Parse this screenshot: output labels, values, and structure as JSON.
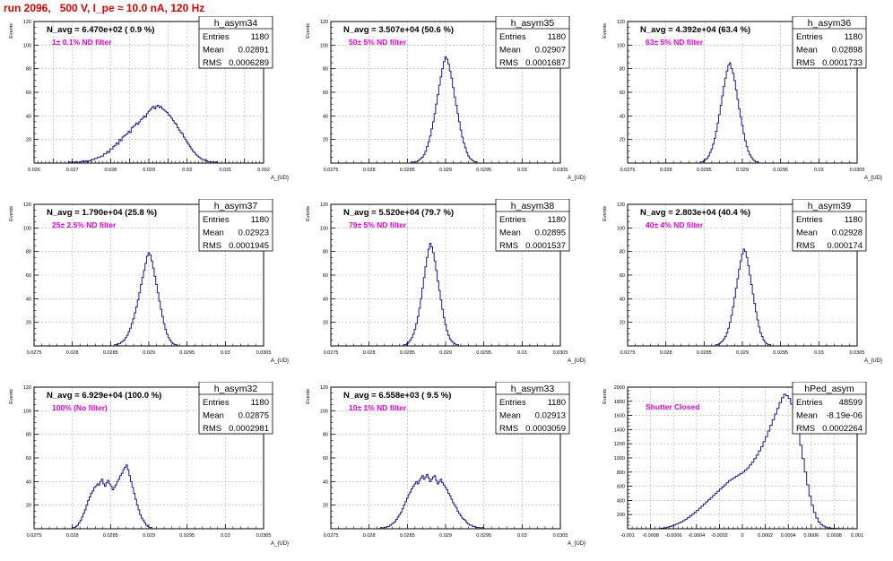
{
  "page": {
    "title": "run 2096,   500 V, I_pe ≈ 10.0 nA, 120 Hz"
  },
  "colors": {
    "histogram": "#1a1a8c",
    "annotation": "#e000e0",
    "title_text": "#d40000",
    "grid": "#b0b0b0"
  },
  "chart_data": [
    {
      "type": "bar",
      "name": "h_asym34",
      "stats": {
        "Entries": "1180",
        "Mean": "0.02891",
        "RMS": "0.0006289"
      },
      "navg": "N_avg = 6.470e+02 ( 0.9 %)",
      "filter_label": "1± 0.1% ND filter",
      "xlabel": "A_{UD}",
      "ylabel": "Events",
      "xlim": [
        0.026,
        0.032
      ],
      "ylim": [
        0,
        120
      ],
      "xticks": [
        0.026,
        0.0265,
        0.027,
        0.0275,
        0.028,
        0.0285,
        0.029,
        0.0295,
        0.03,
        0.0305,
        0.031,
        0.0315,
        0.032
      ],
      "xtick_labels": [
        "0.026",
        "",
        "0.027",
        "",
        "0.028",
        "",
        "0.029",
        "",
        "0.03",
        "",
        "0.031",
        "",
        "0.032"
      ],
      "yticks": [
        0,
        20,
        40,
        60,
        80,
        100,
        120
      ],
      "ytick_labels": [
        "",
        "20",
        "40",
        "60",
        "80",
        "100",
        "120"
      ],
      "hist": {
        "start": 0.0269,
        "width": 4e-05,
        "values": [
          1,
          0,
          1,
          0,
          1,
          1,
          0,
          1,
          1,
          2,
          1,
          2,
          1,
          2,
          2,
          3,
          3,
          4,
          4,
          5,
          5,
          6,
          6,
          8,
          8,
          10,
          9,
          12,
          12,
          14,
          15,
          17,
          16,
          20,
          19,
          22,
          23,
          24,
          25,
          27,
          26,
          30,
          31,
          32,
          34,
          33,
          35,
          37,
          38,
          40,
          39,
          42,
          44,
          45,
          47,
          48,
          46,
          48,
          49,
          47,
          48,
          46,
          45,
          44,
          43,
          41,
          40,
          38,
          36,
          34,
          33,
          30,
          28,
          26,
          25,
          22,
          20,
          18,
          16,
          14,
          12,
          10,
          9,
          7,
          6,
          5,
          4,
          3,
          3,
          2,
          2,
          1,
          1,
          1,
          1,
          0,
          1
        ]
      }
    },
    {
      "type": "bar",
      "name": "h_asym35",
      "stats": {
        "Entries": "1180",
        "Mean": "0.02907",
        "RMS": "0.0001687"
      },
      "navg": "N_avg = 3.507e+04 (50.6 %)",
      "filter_label": "50± 5% ND filter",
      "xlabel": "A_{UD}",
      "ylabel": "Events",
      "xlim": [
        0.0275,
        0.0305
      ],
      "ylim": [
        0,
        120
      ],
      "xticks": [
        0.0275,
        0.028,
        0.0285,
        0.029,
        0.0295,
        0.03,
        0.0305
      ],
      "xtick_labels": [
        "0.0275",
        "0.028",
        "0.0285",
        "0.029",
        "0.0295",
        "0.03",
        "0.0305"
      ],
      "yticks": [
        0,
        20,
        40,
        60,
        80,
        100,
        120
      ],
      "ytick_labels": [
        "",
        "20",
        "40",
        "60",
        "80",
        "100",
        "120"
      ],
      "hist": {
        "start": 0.02855,
        "width": 2e-05,
        "values": [
          1,
          0,
          1,
          1,
          2,
          3,
          4,
          5,
          7,
          10,
          14,
          18,
          23,
          29,
          35,
          42,
          50,
          58,
          66,
          73,
          80,
          86,
          90,
          88,
          84,
          78,
          72,
          64,
          56,
          49,
          42,
          35,
          28,
          22,
          17,
          13,
          9,
          6,
          4,
          3,
          2,
          1,
          1
        ]
      }
    },
    {
      "type": "bar",
      "name": "h_asym36",
      "stats": {
        "Entries": "1180",
        "Mean": "0.02898",
        "RMS": "0.0001733"
      },
      "navg": "N_avg = 4.392e+04 (63.4 %)",
      "filter_label": "63± 5% ND filter",
      "xlabel": "A_{UD}",
      "ylabel": "Events",
      "xlim": [
        0.0275,
        0.0305
      ],
      "ylim": [
        0,
        120
      ],
      "xticks": [
        0.0275,
        0.028,
        0.0285,
        0.029,
        0.0295,
        0.03,
        0.0305
      ],
      "xtick_labels": [
        "0.0275",
        "0.028",
        "0.0285",
        "0.029",
        "0.0295",
        "0.03",
        "0.0305"
      ],
      "yticks": [
        0,
        20,
        40,
        60,
        80,
        100,
        120
      ],
      "ytick_labels": [
        "",
        "20",
        "40",
        "60",
        "80",
        "100",
        "120"
      ],
      "hist": {
        "start": 0.02845,
        "width": 2e-05,
        "values": [
          1,
          1,
          2,
          3,
          4,
          6,
          9,
          12,
          16,
          21,
          27,
          34,
          41,
          49,
          57,
          65,
          72,
          78,
          83,
          85,
          80,
          76,
          70,
          62,
          54,
          46,
          39,
          32,
          25,
          19,
          14,
          10,
          7,
          5,
          3,
          2,
          1,
          1
        ]
      }
    },
    {
      "type": "bar",
      "name": "h_asym37",
      "stats": {
        "Entries": "1180",
        "Mean": "0.02923",
        "RMS": "0.0001945"
      },
      "navg": "N_avg = 1.790e+04 (25.8 %)",
      "filter_label": "25± 2.5% ND filter",
      "xlabel": "A_{UD}",
      "ylabel": "Events",
      "xlim": [
        0.0275,
        0.0305
      ],
      "ylim": [
        0,
        120
      ],
      "xticks": [
        0.0275,
        0.028,
        0.0285,
        0.029,
        0.0295,
        0.03,
        0.0305
      ],
      "xtick_labels": [
        "0.0275",
        "0.028",
        "0.0285",
        "0.029",
        "0.0295",
        "0.03",
        "0.0305"
      ],
      "yticks": [
        0,
        20,
        40,
        60,
        80,
        100,
        120
      ],
      "ytick_labels": [
        "",
        "20",
        "40",
        "60",
        "80",
        "100",
        "120"
      ],
      "hist": {
        "start": 0.02855,
        "width": 2e-05,
        "values": [
          1,
          1,
          2,
          2,
          3,
          4,
          5,
          7,
          9,
          12,
          15,
          19,
          23,
          28,
          33,
          39,
          45,
          52,
          58,
          64,
          70,
          76,
          79,
          77,
          72,
          66,
          59,
          52,
          45,
          38,
          31,
          25,
          19,
          14,
          10,
          7,
          5,
          3,
          2,
          1,
          1
        ]
      }
    },
    {
      "type": "bar",
      "name": "h_asym38",
      "stats": {
        "Entries": "1180",
        "Mean": "0.02895",
        "RMS": "0.0001537"
      },
      "navg": "N_avg = 5.520e+04 (79.7 %)",
      "filter_label": "79± 5% ND filter",
      "xlabel": "A_{UD}",
      "ylabel": "Events",
      "xlim": [
        0.0275,
        0.0305
      ],
      "ylim": [
        0,
        120
      ],
      "xticks": [
        0.0275,
        0.028,
        0.0285,
        0.029,
        0.0295,
        0.03,
        0.0305
      ],
      "xtick_labels": [
        "0.0275",
        "0.028",
        "0.0285",
        "0.029",
        "0.0295",
        "0.03",
        "0.0305"
      ],
      "yticks": [
        0,
        20,
        40,
        60,
        80,
        100,
        120
      ],
      "ytick_labels": [
        "",
        "20",
        "40",
        "60",
        "80",
        "100",
        "120"
      ],
      "hist": {
        "start": 0.02845,
        "width": 2e-05,
        "values": [
          1,
          1,
          2,
          3,
          5,
          7,
          10,
          14,
          19,
          25,
          32,
          40,
          49,
          58,
          67,
          75,
          82,
          87,
          84,
          79,
          72,
          64,
          55,
          47,
          39,
          31,
          24,
          18,
          13,
          9,
          6,
          4,
          3,
          2,
          1,
          1
        ]
      }
    },
    {
      "type": "bar",
      "name": "h_asym39",
      "stats": {
        "Entries": "1180",
        "Mean": "0.02928",
        "RMS": "0.000174"
      },
      "navg": "N_avg = 2.803e+04 (40.4 %)",
      "filter_label": "40± 4% ND filter",
      "xlabel": "A_{UD}",
      "ylabel": "Events",
      "xlim": [
        0.0275,
        0.0305
      ],
      "ylim": [
        0,
        120
      ],
      "xticks": [
        0.0275,
        0.028,
        0.0285,
        0.029,
        0.0295,
        0.03,
        0.0305
      ],
      "xtick_labels": [
        "0.0275",
        "0.028",
        "0.0285",
        "0.029",
        "0.0295",
        "0.03",
        "0.0305"
      ],
      "yticks": [
        0,
        20,
        40,
        60,
        80,
        100,
        120
      ],
      "ytick_labels": [
        "",
        "20",
        "40",
        "60",
        "80",
        "100",
        "120"
      ],
      "hist": {
        "start": 0.02865,
        "width": 2e-05,
        "values": [
          1,
          1,
          2,
          3,
          4,
          6,
          8,
          11,
          15,
          20,
          26,
          33,
          41,
          49,
          57,
          65,
          72,
          78,
          82,
          80,
          75,
          68,
          60,
          52,
          44,
          36,
          29,
          22,
          16,
          11,
          8,
          5,
          3,
          2,
          1,
          1
        ]
      }
    },
    {
      "type": "bar",
      "name": "h_asym32",
      "stats": {
        "Entries": "1180",
        "Mean": "0.02875",
        "RMS": "0.0002981"
      },
      "navg": "N_avg = 6.929e+04 (100.0 %)",
      "filter_label": "100% (No filter)",
      "xlabel": "A_{UD}",
      "ylabel": "Events",
      "xlim": [
        0.0275,
        0.0305
      ],
      "ylim": [
        0,
        120
      ],
      "xticks": [
        0.0275,
        0.028,
        0.0285,
        0.029,
        0.0295,
        0.03,
        0.0305
      ],
      "xtick_labels": [
        "0.0275",
        "0.028",
        "0.0285",
        "0.029",
        "0.0295",
        "0.03",
        "0.0305"
      ],
      "yticks": [
        0,
        20,
        40,
        60,
        80,
        100,
        120
      ],
      "ytick_labels": [
        "",
        "20",
        "40",
        "60",
        "80",
        "100",
        "120"
      ],
      "hist": {
        "start": 0.028,
        "width": 2e-05,
        "values": [
          1,
          1,
          2,
          3,
          5,
          7,
          10,
          13,
          16,
          20,
          24,
          27,
          30,
          32,
          35,
          36,
          38,
          37,
          40,
          42,
          38,
          36,
          39,
          41,
          38,
          36,
          33,
          35,
          37,
          40,
          42,
          45,
          47,
          50,
          52,
          54,
          50,
          45,
          40,
          35,
          30,
          25,
          20,
          16,
          12,
          9,
          7,
          5,
          3,
          2,
          1,
          1
        ]
      }
    },
    {
      "type": "bar",
      "name": "h_asym33",
      "stats": {
        "Entries": "1180",
        "Mean": "0.02913",
        "RMS": "0.0003059"
      },
      "navg": "N_avg = 6.558e+03 ( 9.5 %)",
      "filter_label": "10± 1% ND filter",
      "xlabel": "A_{UD}",
      "ylabel": "Events",
      "xlim": [
        0.0275,
        0.0305
      ],
      "ylim": [
        0,
        120
      ],
      "xticks": [
        0.0275,
        0.028,
        0.0285,
        0.029,
        0.0295,
        0.03,
        0.0305
      ],
      "xtick_labels": [
        "0.0275",
        "0.028",
        "0.0285",
        "0.029",
        "0.0295",
        "0.03",
        "0.0305"
      ],
      "yticks": [
        0,
        20,
        40,
        60,
        80,
        100,
        120
      ],
      "ytick_labels": [
        "",
        "20",
        "40",
        "60",
        "80",
        "100",
        "120"
      ],
      "hist": {
        "start": 0.02815,
        "width": 2e-05,
        "values": [
          1,
          0,
          1,
          1,
          2,
          2,
          3,
          4,
          5,
          6,
          8,
          10,
          12,
          14,
          17,
          20,
          23,
          26,
          29,
          31,
          34,
          36,
          38,
          40,
          38,
          41,
          43,
          45,
          42,
          44,
          46,
          43,
          40,
          42,
          44,
          45,
          41,
          38,
          40,
          42,
          39,
          37,
          35,
          33,
          30,
          28,
          25,
          22,
          20,
          18,
          15,
          13,
          11,
          9,
          8,
          7,
          5,
          4,
          3,
          3,
          2,
          2,
          1,
          1,
          1,
          0,
          1
        ]
      }
    },
    {
      "type": "bar",
      "name": "hPed_asym",
      "stats": {
        "Entries": "48599",
        "Mean": "-8.19e-06",
        "RMS": "0.0002264"
      },
      "navg": "",
      "filter_label": "Shutter Closed",
      "xlabel": "",
      "ylabel": "Events",
      "xlim": [
        -0.001,
        0.001
      ],
      "ylim": [
        0,
        2000
      ],
      "xticks": [
        -0.001,
        -0.0008,
        -0.0006,
        -0.0004,
        -0.0002,
        0,
        0.0002,
        0.0004,
        0.0006,
        0.0008,
        0.001
      ],
      "xtick_labels": [
        "-0.001",
        "-0.0008",
        "-0.0006",
        "-0.0004",
        "-0.0002",
        "0",
        "0.0002",
        "0.0004",
        "0.0006",
        "0.0008",
        "0.001"
      ],
      "yticks": [
        0,
        200,
        400,
        600,
        800,
        1000,
        1200,
        1400,
        1600,
        1800,
        2000
      ],
      "ytick_labels": [
        "",
        "200",
        "400",
        "600",
        "800",
        "1000",
        "1200",
        "1400",
        "1600",
        "1800",
        "2000"
      ],
      "hist": {
        "start": -0.00072,
        "width": 2e-05,
        "values": [
          5,
          10,
          15,
          22,
          30,
          40,
          52,
          65,
          80,
          96,
          114,
          134,
          156,
          180,
          205,
          232,
          260,
          290,
          320,
          350,
          380,
          410,
          440,
          470,
          500,
          530,
          560,
          590,
          620,
          650,
          680,
          700,
          720,
          740,
          760,
          780,
          800,
          830,
          860,
          900,
          940,
          990,
          1040,
          1100,
          1160,
          1230,
          1300,
          1380,
          1460,
          1540,
          1620,
          1700,
          1780,
          1850,
          1900,
          1880,
          1840,
          1760,
          1650,
          1520,
          1360,
          1180,
          990,
          800,
          620,
          460,
          330,
          230,
          150,
          95,
          60,
          38,
          24,
          15,
          9,
          6,
          4,
          2,
          1,
          1
        ]
      }
    }
  ]
}
